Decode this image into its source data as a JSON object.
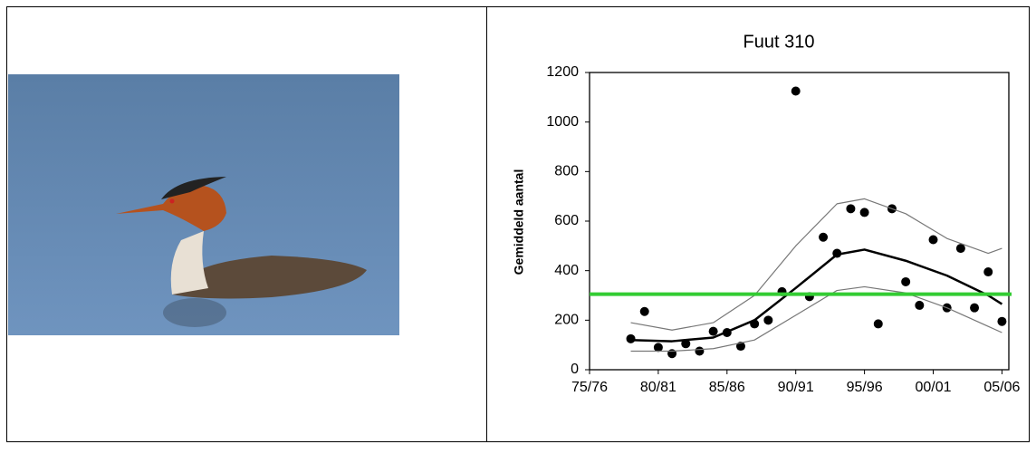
{
  "chart_data": {
    "type": "scatter",
    "title": "Fuut 310",
    "y_label": "Gemiddeld aantal",
    "xlim": [
      1975.5,
      2006
    ],
    "ylim": [
      0,
      1200
    ],
    "xticks": [
      {
        "value": 1975.5,
        "label": "75/76"
      },
      {
        "value": 1980.5,
        "label": "80/81"
      },
      {
        "value": 1985.5,
        "label": "85/86"
      },
      {
        "value": 1990.5,
        "label": "90/91"
      },
      {
        "value": 1995.5,
        "label": "95/96"
      },
      {
        "value": 2000.5,
        "label": "00/01"
      },
      {
        "value": 2005.5,
        "label": "05/06"
      }
    ],
    "yticks": [
      0,
      200,
      400,
      600,
      800,
      1000,
      1200
    ],
    "series": [
      {
        "style": "points",
        "color": "#000000",
        "x": [
          1978.5,
          1979.5,
          1980.5,
          1981.5,
          1982.5,
          1983.5,
          1984.5,
          1985.5,
          1986.5,
          1987.5,
          1988.5,
          1989.5,
          1990.5,
          1991.5,
          1992.5,
          1993.5,
          1994.5,
          1995.5,
          1996.5,
          1997.5,
          1998.5,
          1999.5,
          2000.5,
          2001.5,
          2002.5,
          2003.5,
          2004.5,
          2005.5
        ],
        "values": [
          125,
          235,
          90,
          65,
          105,
          75,
          155,
          150,
          95,
          185,
          200,
          315,
          1125,
          295,
          535,
          470,
          650,
          635,
          185,
          650,
          355,
          260,
          525,
          250,
          490,
          250,
          395,
          195
        ]
      },
      {
        "style": "line",
        "color": "#000000",
        "width": 2.5,
        "x": [
          1978.5,
          1981.5,
          1984.5,
          1987.5,
          1990.5,
          1993.5,
          1995.5,
          1998.5,
          2001.5,
          2004.5,
          2005.5
        ],
        "values": [
          120,
          115,
          130,
          200,
          330,
          465,
          485,
          440,
          380,
          300,
          265
        ]
      },
      {
        "style": "line",
        "color": "#777777",
        "width": 1.2,
        "x": [
          1978.5,
          1981.5,
          1984.5,
          1987.5,
          1990.5,
          1993.5,
          1995.5,
          1998.5,
          2001.5,
          2004.5,
          2005.5
        ],
        "values": [
          190,
          160,
          190,
          300,
          500,
          670,
          690,
          630,
          530,
          470,
          490
        ]
      },
      {
        "style": "line",
        "color": "#777777",
        "width": 1.2,
        "x": [
          1978.5,
          1981.5,
          1984.5,
          1987.5,
          1990.5,
          1993.5,
          1995.5,
          1998.5,
          2001.5,
          2004.5,
          2005.5
        ],
        "values": [
          75,
          75,
          85,
          120,
          220,
          320,
          335,
          310,
          250,
          175,
          150
        ]
      }
    ],
    "reference_line": {
      "value": 305,
      "color": "#33cc33"
    }
  }
}
